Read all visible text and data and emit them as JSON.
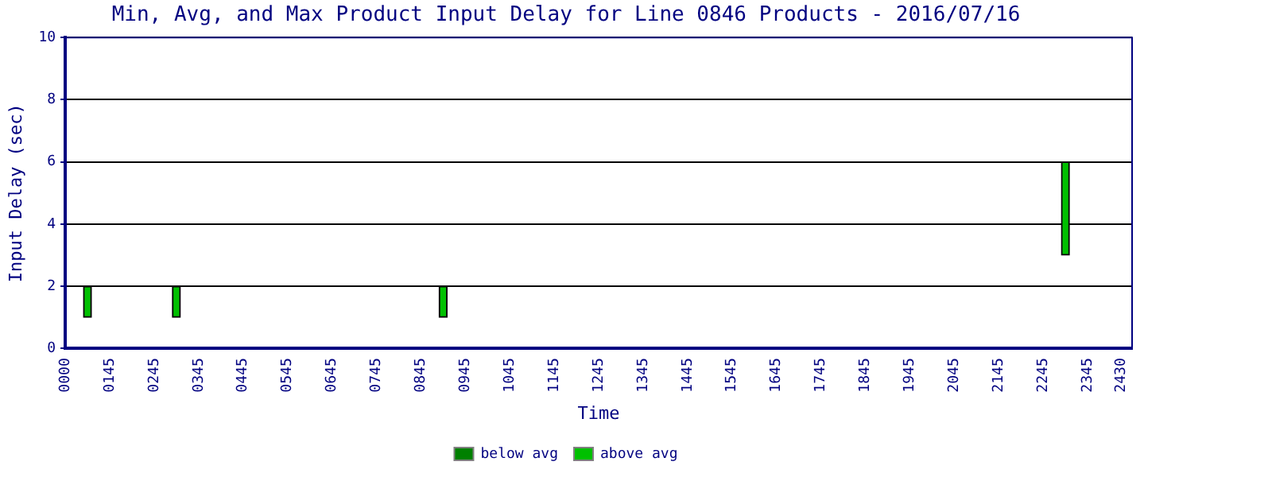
{
  "chart_data": {
    "type": "bar",
    "title": "Min, Avg, and Max Product Input Delay for Line 0846 Products - 2016/07/16",
    "xlabel": "Time",
    "ylabel": "Input Delay (sec)",
    "categories": [
      "0000",
      null,
      null,
      null,
      "0145",
      null,
      null,
      null,
      "0245",
      null,
      null,
      null,
      "0345",
      null,
      null,
      null,
      "0445",
      null,
      null,
      null,
      "0545",
      null,
      null,
      null,
      "0645",
      null,
      null,
      null,
      "0745",
      null,
      null,
      null,
      "0845",
      null,
      null,
      null,
      "0945",
      null,
      null,
      null,
      "1045",
      null,
      null,
      null,
      "1145",
      null,
      null,
      null,
      "1245",
      null,
      null,
      null,
      "1345",
      null,
      null,
      null,
      "1445",
      null,
      null,
      null,
      "1545",
      null,
      null,
      null,
      "1645",
      null,
      null,
      null,
      "1745",
      null,
      null,
      null,
      "1845",
      null,
      null,
      null,
      "1945",
      null,
      null,
      null,
      "2045",
      null,
      null,
      null,
      "2145",
      null,
      null,
      null,
      "2245",
      null,
      null,
      null,
      "2345",
      null,
      null,
      "2430",
      null
    ],
    "series": [
      {
        "name": "below avg",
        "color": "#008000",
        "values": [
          null,
          null,
          null,
          null,
          null,
          null,
          null,
          null,
          null,
          null,
          null,
          null,
          null,
          null,
          null,
          null,
          null,
          null,
          null,
          null,
          null,
          null,
          null,
          null,
          null,
          null,
          null,
          null,
          null,
          null,
          null,
          null,
          null,
          null,
          null,
          null,
          null,
          null,
          null,
          null,
          null,
          null,
          null,
          null,
          null,
          null,
          null,
          null,
          null,
          null,
          null,
          null,
          null,
          null,
          null,
          null,
          null,
          null,
          null,
          null,
          null,
          null,
          null,
          null,
          null,
          null,
          null,
          null,
          null,
          null,
          null,
          null,
          null,
          null,
          null,
          null,
          null,
          null,
          null,
          null,
          null,
          null,
          null,
          null,
          null,
          null,
          null,
          null,
          null,
          null,
          null,
          null,
          null,
          null,
          null,
          null,
          null
        ]
      },
      {
        "name": "above avg",
        "color": "#00c000",
        "base": [
          null,
          null,
          1,
          null,
          null,
          null,
          null,
          null,
          null,
          null,
          1,
          null,
          null,
          null,
          null,
          null,
          null,
          null,
          null,
          null,
          null,
          null,
          null,
          null,
          null,
          null,
          null,
          null,
          null,
          null,
          null,
          null,
          null,
          null,
          1,
          null,
          null,
          null,
          null,
          null,
          null,
          null,
          null,
          null,
          null,
          null,
          null,
          null,
          null,
          null,
          null,
          null,
          null,
          null,
          null,
          null,
          null,
          null,
          null,
          null,
          null,
          null,
          null,
          null,
          null,
          null,
          null,
          null,
          null,
          null,
          null,
          null,
          null,
          null,
          null,
          null,
          null,
          null,
          null,
          null,
          null,
          null,
          null,
          null,
          null,
          null,
          null,
          null,
          null,
          null,
          3,
          null,
          null,
          null,
          null,
          null,
          null
        ],
        "values": [
          null,
          null,
          1,
          null,
          null,
          null,
          null,
          null,
          null,
          null,
          1,
          null,
          null,
          null,
          null,
          null,
          null,
          null,
          null,
          null,
          null,
          null,
          null,
          null,
          null,
          null,
          null,
          null,
          null,
          null,
          null,
          null,
          null,
          null,
          1,
          null,
          null,
          null,
          null,
          null,
          null,
          null,
          null,
          null,
          null,
          null,
          null,
          null,
          null,
          null,
          null,
          null,
          null,
          null,
          null,
          null,
          null,
          null,
          null,
          null,
          null,
          null,
          null,
          null,
          null,
          null,
          null,
          null,
          null,
          null,
          null,
          null,
          null,
          null,
          null,
          null,
          null,
          null,
          null,
          null,
          null,
          null,
          null,
          null,
          null,
          null,
          null,
          null,
          null,
          null,
          3,
          null,
          null,
          null,
          null,
          null,
          null
        ]
      }
    ],
    "ylim": [
      0,
      10
    ],
    "yticks": [
      0,
      2,
      4,
      6,
      8,
      10
    ],
    "grid": "y",
    "legend": "bottom"
  }
}
